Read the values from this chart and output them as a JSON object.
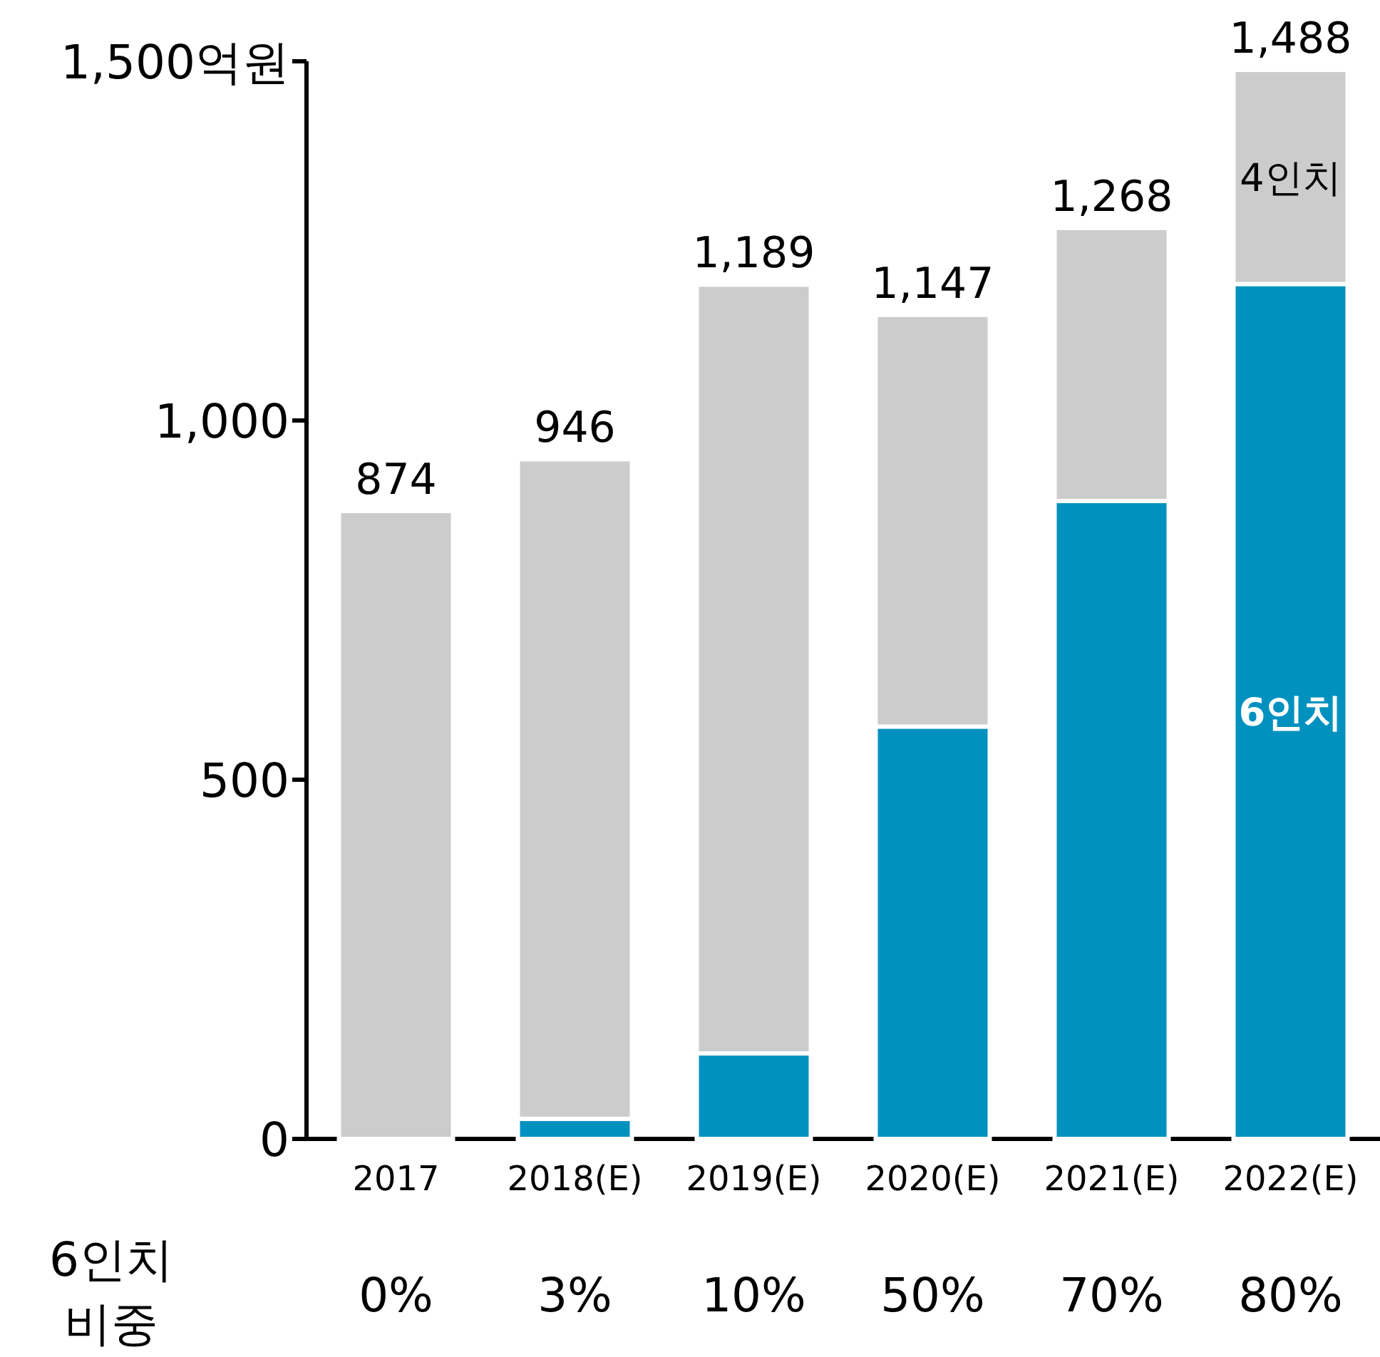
{
  "chart_data": {
    "type": "bar",
    "stacked": true,
    "categories": [
      "2017",
      "2018(E)",
      "2019(E)",
      "2020(E)",
      "2021(E)",
      "2022(E)"
    ],
    "series": [
      {
        "name": "6인치",
        "color": "#0091bf",
        "values": [
          0,
          28,
          119,
          574,
          888,
          1190
        ]
      },
      {
        "name": "4인치",
        "color": "#cccccc",
        "values": [
          874,
          918,
          1070,
          573,
          380,
          298
        ]
      }
    ],
    "ylim": [
      0,
      1500
    ],
    "yticks": [
      0,
      500,
      {
        "value": 1000,
        "label": "1,000"
      },
      {
        "value": 1500,
        "label": "1,500억원"
      }
    ],
    "totals": [
      "874",
      "946",
      "1,189",
      "1,147",
      "1,268",
      "1,488"
    ],
    "annotations": [
      "6인치 비중",
      "0%",
      "3%",
      "10%",
      "50%",
      "70%",
      "80%"
    ]
  }
}
